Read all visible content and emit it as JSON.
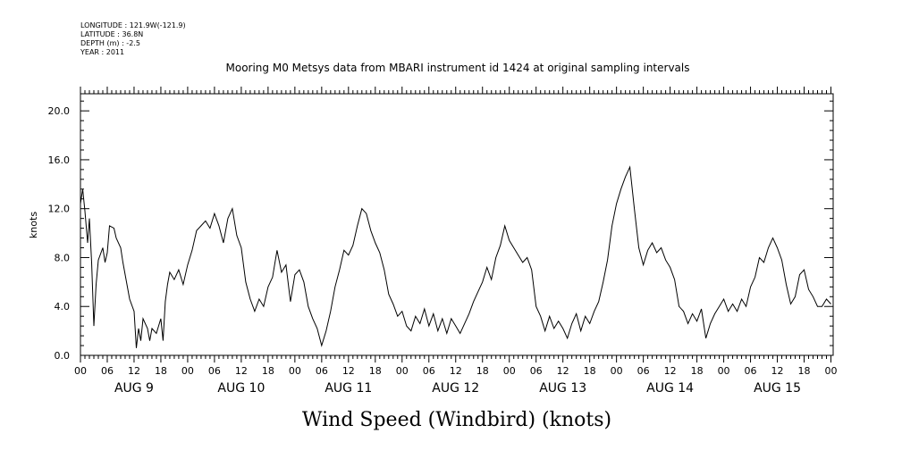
{
  "meta": {
    "longitude": "LONGITUDE : 121.9W(-121.9)",
    "latitude": "LATITUDE : 36.8N",
    "depth": "DEPTH (m) : -2.5",
    "year": "YEAR : 2011"
  },
  "chart_data": {
    "type": "line",
    "title": "Mooring M0 Metsys data from MBARI instrument id 1424 at original sampling intervals",
    "xlabel": "Wind Speed (Windbird) (knots)",
    "ylabel": "knots",
    "ylim": [
      0,
      21.4
    ],
    "yticks": [
      0.0,
      4.0,
      8.0,
      12.0,
      16.0,
      20.0
    ],
    "ytick_labels": [
      "0.0",
      "4.0",
      "8.0",
      "12.0",
      "16.0",
      "20.0"
    ],
    "x_unit": "hours since AUG 9 00:00",
    "xlim": [
      0,
      168.5
    ],
    "hour_tick_labels": [
      "00",
      "06",
      "12",
      "18",
      "00",
      "06",
      "12",
      "18",
      "00",
      "06",
      "12",
      "18",
      "00",
      "06",
      "12",
      "18",
      "00",
      "06",
      "12",
      "18",
      "00",
      "06",
      "12",
      "18",
      "00",
      "06",
      "12",
      "18",
      "00"
    ],
    "day_labels": [
      "AUG  9",
      "AUG 10",
      "AUG 11",
      "AUG 12",
      "AUG 13",
      "AUG 14",
      "AUG 15"
    ],
    "grid": false,
    "series": [
      {
        "values": [
          [
            0,
            12.4
          ],
          [
            0.5,
            13.6
          ],
          [
            1,
            11.8
          ],
          [
            1.6,
            9.2
          ],
          [
            2,
            11.2
          ],
          [
            2.5,
            7.6
          ],
          [
            3,
            2.4
          ],
          [
            3.5,
            5.8
          ],
          [
            4,
            7.8
          ],
          [
            5,
            8.8
          ],
          [
            5.5,
            7.6
          ],
          [
            6,
            8.4
          ],
          [
            6.5,
            10.6
          ],
          [
            7.5,
            10.4
          ],
          [
            8,
            9.6
          ],
          [
            9,
            8.8
          ],
          [
            9.5,
            7.6
          ],
          [
            10,
            6.6
          ],
          [
            11,
            4.6
          ],
          [
            12,
            3.6
          ],
          [
            12.5,
            0.6
          ],
          [
            13,
            2.2
          ],
          [
            13.5,
            1.2
          ],
          [
            14,
            3.0
          ],
          [
            15,
            2.2
          ],
          [
            15.5,
            1.2
          ],
          [
            16,
            2.2
          ],
          [
            17,
            1.8
          ],
          [
            18,
            3.0
          ],
          [
            18.5,
            1.2
          ],
          [
            19,
            4.4
          ],
          [
            19.5,
            5.8
          ],
          [
            20,
            6.8
          ],
          [
            21,
            6.2
          ],
          [
            22,
            7.0
          ],
          [
            23,
            5.8
          ],
          [
            24,
            7.4
          ],
          [
            25,
            8.6
          ],
          [
            26,
            10.2
          ],
          [
            27,
            10.6
          ],
          [
            28,
            11.0
          ],
          [
            29,
            10.4
          ],
          [
            30,
            11.6
          ],
          [
            31,
            10.6
          ],
          [
            32,
            9.2
          ],
          [
            33,
            11.2
          ],
          [
            34,
            12.0
          ],
          [
            35,
            9.8
          ],
          [
            36,
            8.8
          ],
          [
            37,
            6.0
          ],
          [
            38,
            4.6
          ],
          [
            39,
            3.6
          ],
          [
            40,
            4.6
          ],
          [
            41,
            4.0
          ],
          [
            42,
            5.6
          ],
          [
            43,
            6.4
          ],
          [
            44,
            8.6
          ],
          [
            45,
            6.8
          ],
          [
            46,
            7.4
          ],
          [
            47,
            4.4
          ],
          [
            48,
            6.6
          ],
          [
            49,
            7.0
          ],
          [
            50,
            6.0
          ],
          [
            51,
            4.0
          ],
          [
            52,
            3.0
          ],
          [
            53,
            2.2
          ],
          [
            54,
            0.8
          ],
          [
            55,
            2.0
          ],
          [
            56,
            3.6
          ],
          [
            57,
            5.6
          ],
          [
            58,
            7.0
          ],
          [
            59,
            8.6
          ],
          [
            60,
            8.2
          ],
          [
            61,
            9.0
          ],
          [
            62,
            10.6
          ],
          [
            63,
            12.0
          ],
          [
            64,
            11.6
          ],
          [
            65,
            10.2
          ],
          [
            66,
            9.2
          ],
          [
            67,
            8.4
          ],
          [
            68,
            7.0
          ],
          [
            69,
            5.0
          ],
          [
            70,
            4.2
          ],
          [
            71,
            3.2
          ],
          [
            72,
            3.6
          ],
          [
            73,
            2.4
          ],
          [
            74,
            2.0
          ],
          [
            75,
            3.2
          ],
          [
            76,
            2.6
          ],
          [
            77,
            3.8
          ],
          [
            78,
            2.4
          ],
          [
            79,
            3.4
          ],
          [
            80,
            2.0
          ],
          [
            81,
            3.0
          ],
          [
            82,
            1.8
          ],
          [
            83,
            3.0
          ],
          [
            84,
            2.4
          ],
          [
            85,
            1.8
          ],
          [
            86,
            2.6
          ],
          [
            87,
            3.4
          ],
          [
            88,
            4.4
          ],
          [
            89,
            5.2
          ],
          [
            90,
            6.0
          ],
          [
            91,
            7.2
          ],
          [
            92,
            6.2
          ],
          [
            93,
            8.0
          ],
          [
            94,
            9.0
          ],
          [
            95,
            10.6
          ],
          [
            96,
            9.4
          ],
          [
            97,
            8.8
          ],
          [
            98,
            8.2
          ],
          [
            99,
            7.6
          ],
          [
            100,
            8.0
          ],
          [
            101,
            7.0
          ],
          [
            102,
            4.0
          ],
          [
            103,
            3.2
          ],
          [
            104,
            2.0
          ],
          [
            105,
            3.2
          ],
          [
            106,
            2.2
          ],
          [
            107,
            2.8
          ],
          [
            108,
            2.2
          ],
          [
            109,
            1.4
          ],
          [
            110,
            2.6
          ],
          [
            111,
            3.4
          ],
          [
            112,
            2.0
          ],
          [
            113,
            3.2
          ],
          [
            114,
            2.6
          ],
          [
            115,
            3.6
          ],
          [
            116,
            4.4
          ],
          [
            117,
            6.0
          ],
          [
            118,
            7.8
          ],
          [
            119,
            10.6
          ],
          [
            120,
            12.4
          ],
          [
            121,
            13.6
          ],
          [
            122,
            14.6
          ],
          [
            123,
            15.4
          ],
          [
            124,
            12.0
          ],
          [
            125,
            8.8
          ],
          [
            126,
            7.4
          ],
          [
            127,
            8.6
          ],
          [
            128,
            9.2
          ],
          [
            129,
            8.4
          ],
          [
            130,
            8.8
          ],
          [
            131,
            7.8
          ],
          [
            132,
            7.2
          ],
          [
            133,
            6.2
          ],
          [
            134,
            4.0
          ],
          [
            135,
            3.6
          ],
          [
            136,
            2.6
          ],
          [
            137,
            3.4
          ],
          [
            138,
            2.8
          ],
          [
            139,
            3.8
          ],
          [
            140,
            1.4
          ],
          [
            141,
            2.6
          ],
          [
            142,
            3.4
          ],
          [
            143,
            4.0
          ],
          [
            144,
            4.6
          ],
          [
            145,
            3.6
          ],
          [
            146,
            4.2
          ],
          [
            147,
            3.6
          ],
          [
            148,
            4.6
          ],
          [
            149,
            4.0
          ],
          [
            150,
            5.6
          ],
          [
            151,
            6.4
          ],
          [
            152,
            8.0
          ],
          [
            153,
            7.6
          ],
          [
            154,
            8.8
          ],
          [
            155,
            9.6
          ],
          [
            156,
            8.8
          ],
          [
            157,
            7.8
          ],
          [
            158,
            5.8
          ],
          [
            159,
            4.2
          ],
          [
            160,
            4.8
          ],
          [
            161,
            6.6
          ],
          [
            162,
            7.0
          ],
          [
            163,
            5.4
          ],
          [
            164,
            4.8
          ],
          [
            165,
            4.0
          ],
          [
            166,
            4.0
          ],
          [
            167,
            4.6
          ],
          [
            168,
            4.2
          ]
        ]
      }
    ]
  }
}
